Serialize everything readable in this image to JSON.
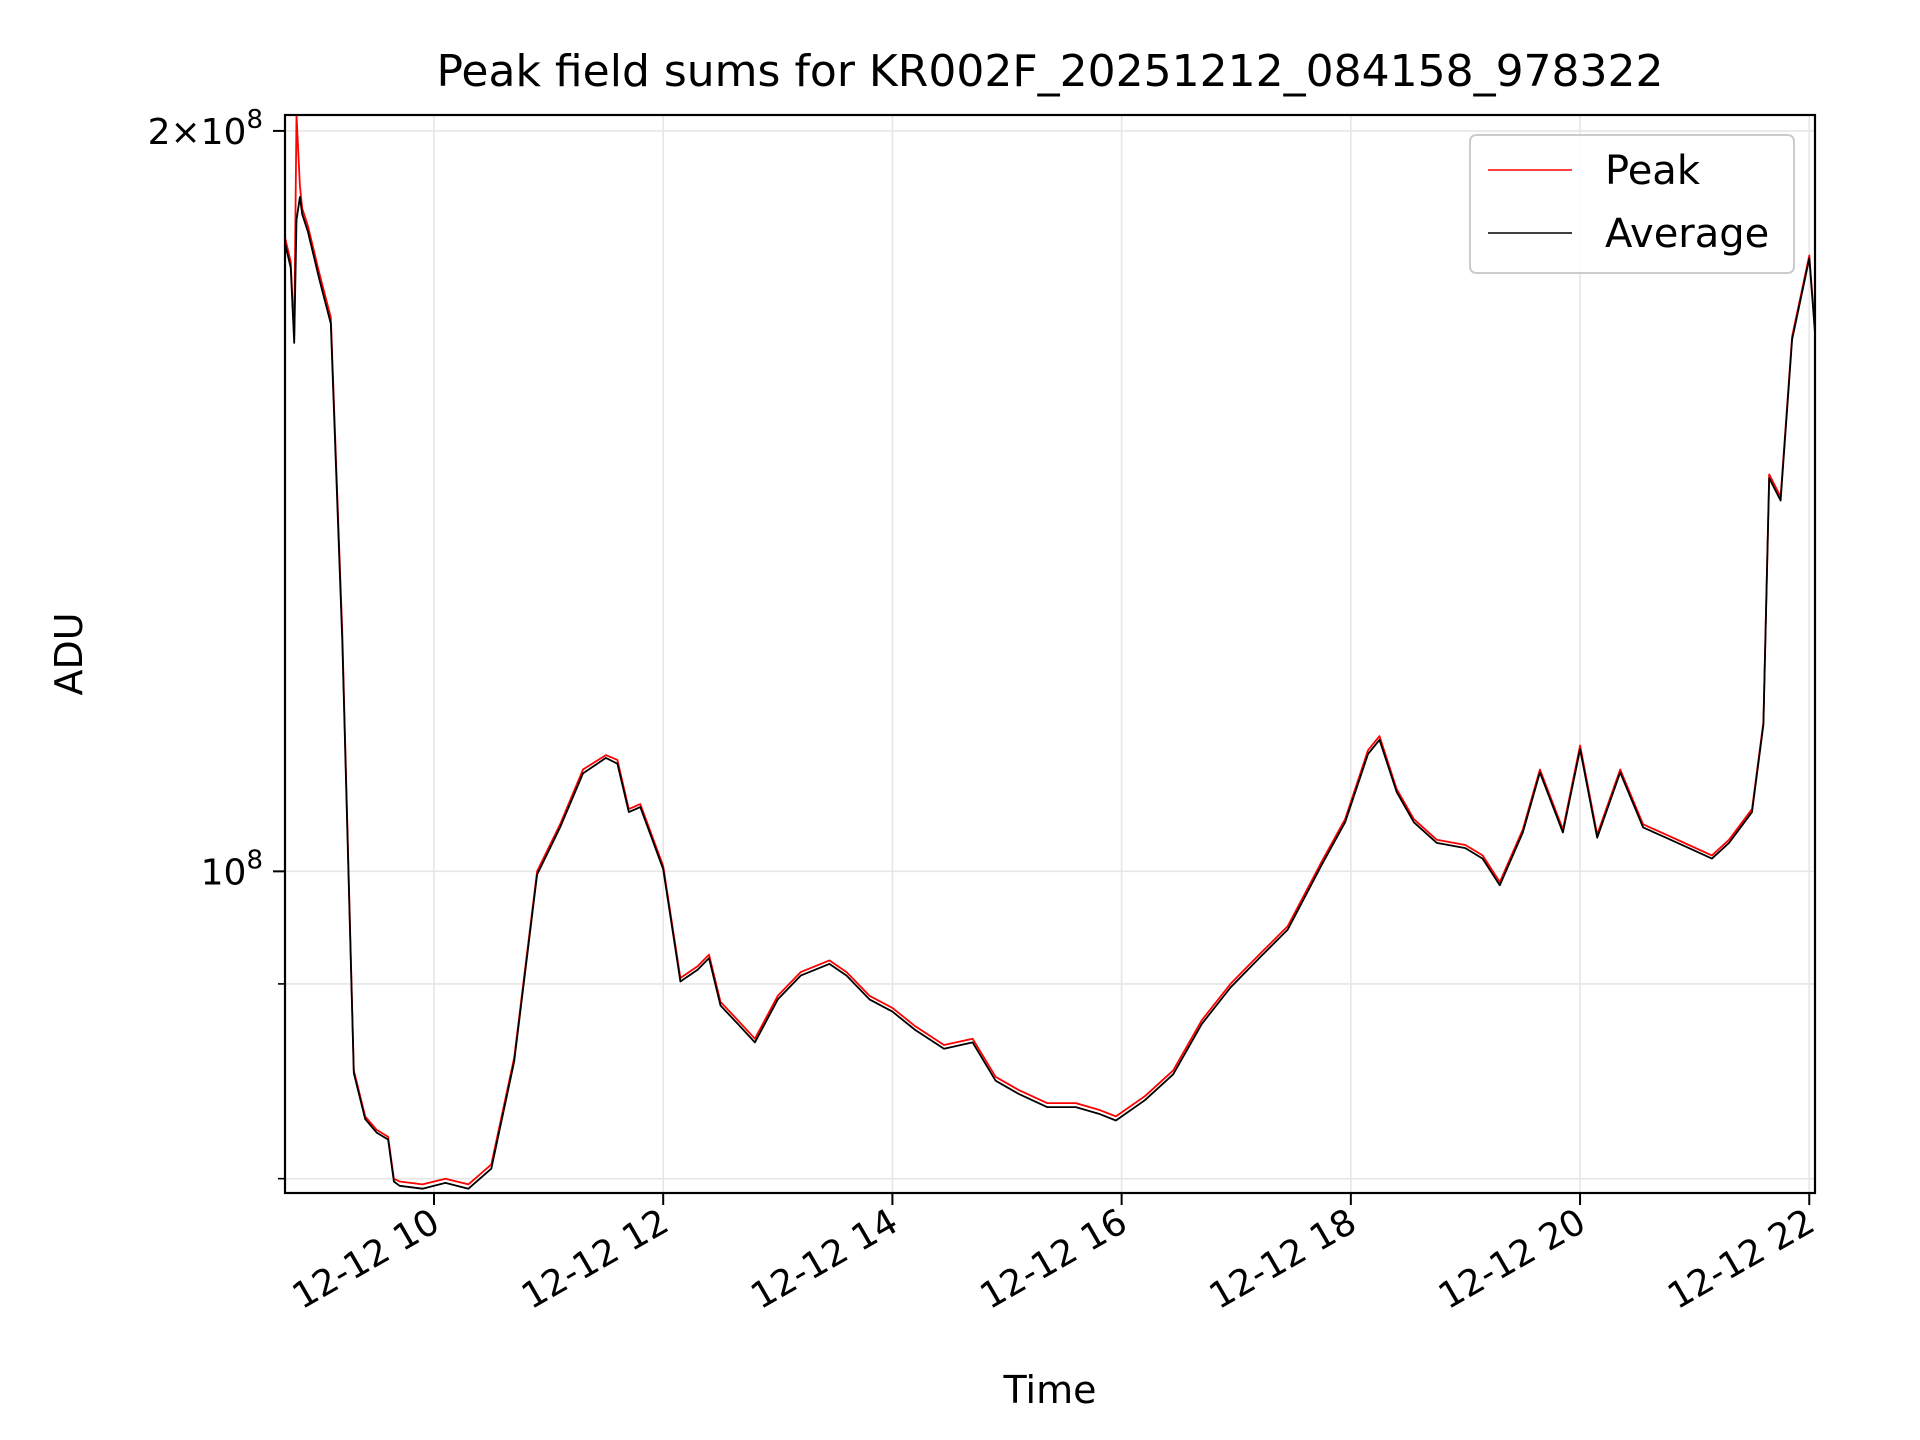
{
  "chart_data": {
    "type": "line",
    "title": "Peak field sums for KR002F_20251212_084158_978322",
    "xlabel": "Time",
    "ylabel": "ADU",
    "yscale": "log",
    "grid": true,
    "legend_position": "top-right",
    "xlim": [
      8.7,
      22.05
    ],
    "ylim": [
      74000000,
      203000000
    ],
    "x_ticks": [
      10,
      12,
      14,
      16,
      18,
      20,
      22
    ],
    "x_tick_labels": [
      "12-12 10",
      "12-12 12",
      "12-12 14",
      "12-12 16",
      "12-12 18",
      "12-12 20",
      "12-12 22"
    ],
    "y_major_ticks": [
      100000000,
      200000000
    ],
    "y_major_labels": [
      {
        "mantissa": "",
        "base": "10",
        "exp": "8"
      },
      {
        "mantissa": "2×",
        "base": "10",
        "exp": "8"
      }
    ],
    "y_minor_ticks": [
      75000000,
      90000000
    ],
    "series": [
      {
        "name": "Peak",
        "color": "#ff0000",
        "x": [
          8.7,
          8.75,
          8.78,
          8.8,
          8.83,
          8.85,
          8.9,
          9.0,
          9.1,
          9.2,
          9.3,
          9.4,
          9.5,
          9.6,
          9.65,
          9.7,
          9.9,
          10.1,
          10.3,
          10.5,
          10.7,
          10.9,
          11.1,
          11.3,
          11.5,
          11.6,
          11.7,
          11.8,
          12.0,
          12.15,
          12.3,
          12.4,
          12.5,
          12.65,
          12.8,
          13.0,
          13.2,
          13.45,
          13.6,
          13.8,
          14.0,
          14.2,
          14.45,
          14.7,
          14.9,
          15.1,
          15.35,
          15.6,
          15.8,
          15.95,
          16.2,
          16.45,
          16.7,
          16.95,
          17.2,
          17.45,
          17.75,
          17.95,
          18.15,
          18.25,
          18.4,
          18.55,
          18.75,
          19.0,
          19.15,
          19.3,
          19.5,
          19.65,
          19.85,
          20.0,
          20.15,
          20.35,
          20.55,
          20.75,
          20.95,
          21.15,
          21.3,
          21.5,
          21.6,
          21.65,
          21.75,
          21.85,
          22.0,
          22.05
        ],
        "values": [
          181000000,
          177000000,
          165000000,
          203000000,
          190000000,
          186000000,
          183000000,
          175000000,
          168000000,
          125000000,
          83000000,
          79500000,
          78500000,
          78000000,
          75000000,
          74800000,
          74600000,
          75000000,
          74600000,
          76000000,
          84000000,
          100000000,
          104500000,
          110000000,
          111500000,
          111000000,
          106000000,
          106500000,
          100500000,
          90500000,
          91500000,
          92500000,
          88500000,
          87000000,
          85500000,
          89000000,
          91000000,
          92000000,
          91000000,
          89000000,
          88000000,
          86500000,
          85000000,
          85500000,
          82500000,
          81500000,
          80500000,
          80500000,
          80000000,
          79500000,
          81000000,
          83000000,
          87000000,
          90000000,
          92500000,
          95000000,
          101000000,
          105000000,
          112000000,
          113500000,
          108000000,
          105000000,
          103000000,
          102500000,
          101500000,
          99000000,
          104000000,
          110000000,
          104000000,
          112500000,
          103500000,
          110000000,
          104500000,
          103500000,
          102500000,
          101500000,
          103000000,
          106000000,
          115000000,
          145000000,
          142000000,
          165000000,
          178000000,
          166000000
        ]
      },
      {
        "name": "Average",
        "color": "#000000",
        "x": [
          8.7,
          8.75,
          8.78,
          8.8,
          8.83,
          8.85,
          8.9,
          9.0,
          9.1,
          9.2,
          9.3,
          9.4,
          9.5,
          9.6,
          9.65,
          9.7,
          9.9,
          10.1,
          10.3,
          10.5,
          10.7,
          10.9,
          11.1,
          11.3,
          11.5,
          11.6,
          11.7,
          11.8,
          12.0,
          12.15,
          12.3,
          12.4,
          12.5,
          12.65,
          12.8,
          13.0,
          13.2,
          13.45,
          13.6,
          13.8,
          14.0,
          14.2,
          14.45,
          14.7,
          14.9,
          15.1,
          15.35,
          15.6,
          15.8,
          15.95,
          16.2,
          16.45,
          16.7,
          16.95,
          17.2,
          17.45,
          17.75,
          17.95,
          18.15,
          18.25,
          18.4,
          18.55,
          18.75,
          19.0,
          19.15,
          19.3,
          19.5,
          19.65,
          19.85,
          20.0,
          20.15,
          20.35,
          20.55,
          20.75,
          20.95,
          21.15,
          21.3,
          21.5,
          21.6,
          21.65,
          21.75,
          21.85,
          22.0,
          22.05
        ],
        "values": [
          180000000,
          176000000,
          164000000,
          184000000,
          188000000,
          185000000,
          182000000,
          174000000,
          167000000,
          124000000,
          82800000,
          79300000,
          78300000,
          77800000,
          74800000,
          74500000,
          74300000,
          74700000,
          74300000,
          75700000,
          83700000,
          99700000,
          104200000,
          109600000,
          111200000,
          110600000,
          105700000,
          106200000,
          100200000,
          90200000,
          91200000,
          92200000,
          88200000,
          86700000,
          85200000,
          88700000,
          90700000,
          91700000,
          90700000,
          88700000,
          87700000,
          86200000,
          84700000,
          85200000,
          82200000,
          81200000,
          80200000,
          80200000,
          79700000,
          79200000,
          80700000,
          82700000,
          86700000,
          89700000,
          92200000,
          94700000,
          100700000,
          104700000,
          111600000,
          113100000,
          107700000,
          104700000,
          102700000,
          102200000,
          101200000,
          98700000,
          103700000,
          109700000,
          103700000,
          112100000,
          103200000,
          109700000,
          104200000,
          103200000,
          102200000,
          101200000,
          102700000,
          105700000,
          114700000,
          144500000,
          141500000,
          164500000,
          177500000,
          165500000
        ]
      }
    ]
  }
}
